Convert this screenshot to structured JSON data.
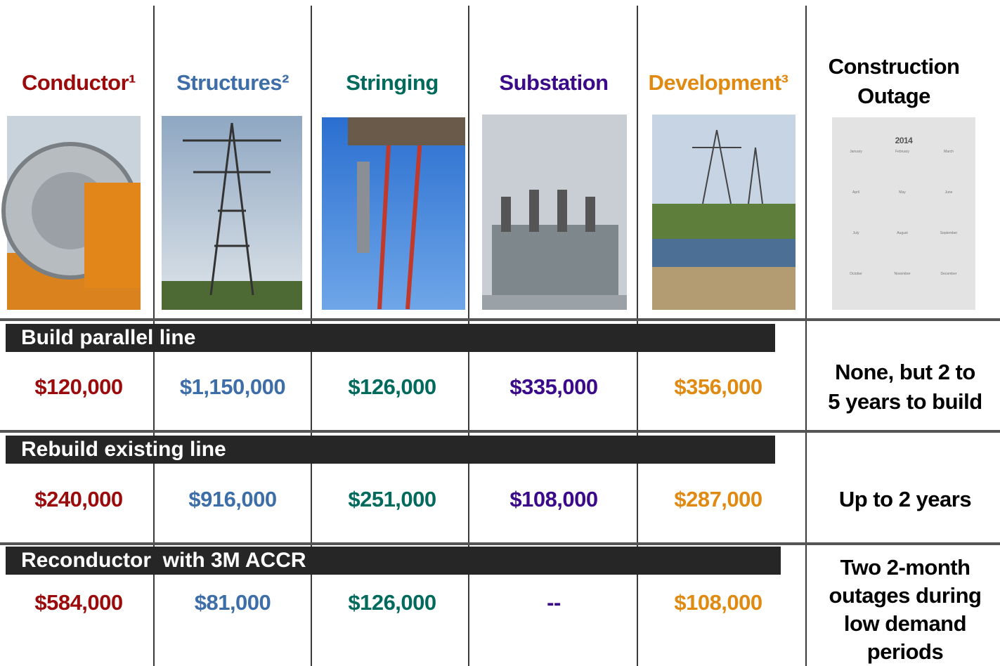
{
  "columns": [
    {
      "title": "Conductor¹",
      "color": "#9b0b0b"
    },
    {
      "title": "Structures²",
      "color": "#3d6ea8"
    },
    {
      "title": "Stringing",
      "color": "#006a5c"
    },
    {
      "title": "Substation",
      "color": "#3b0a8a"
    },
    {
      "title": "Development³",
      "color": "#e08a12"
    }
  ],
  "outage_header": [
    "Construction",
    "Outage"
  ],
  "calendar": {
    "year": "2014",
    "months": [
      "January",
      "February",
      "March",
      "April",
      "May",
      "June",
      "July",
      "August",
      "September",
      "October",
      "November",
      "December"
    ]
  },
  "rows": [
    {
      "label": "Build parallel line",
      "values": [
        "$120,000",
        "$1,150,000",
        "$126,000",
        "$335,000",
        "$356,000"
      ],
      "outage": [
        "None, but 2 to",
        "5 years to build"
      ]
    },
    {
      "label": "Rebuild existing line",
      "values": [
        "$240,000",
        "$916,000",
        "$251,000",
        "$108,000",
        "$287,000"
      ],
      "outage": [
        "Up to 2 years"
      ]
    },
    {
      "label": "Reconductor  with 3M ACCR",
      "values": [
        "$584,000",
        "$81,000",
        "$126,000",
        "--",
        "$108,000"
      ],
      "outage": [
        "Two 2-month",
        "outages during",
        "low demand",
        "periods"
      ]
    }
  ]
}
